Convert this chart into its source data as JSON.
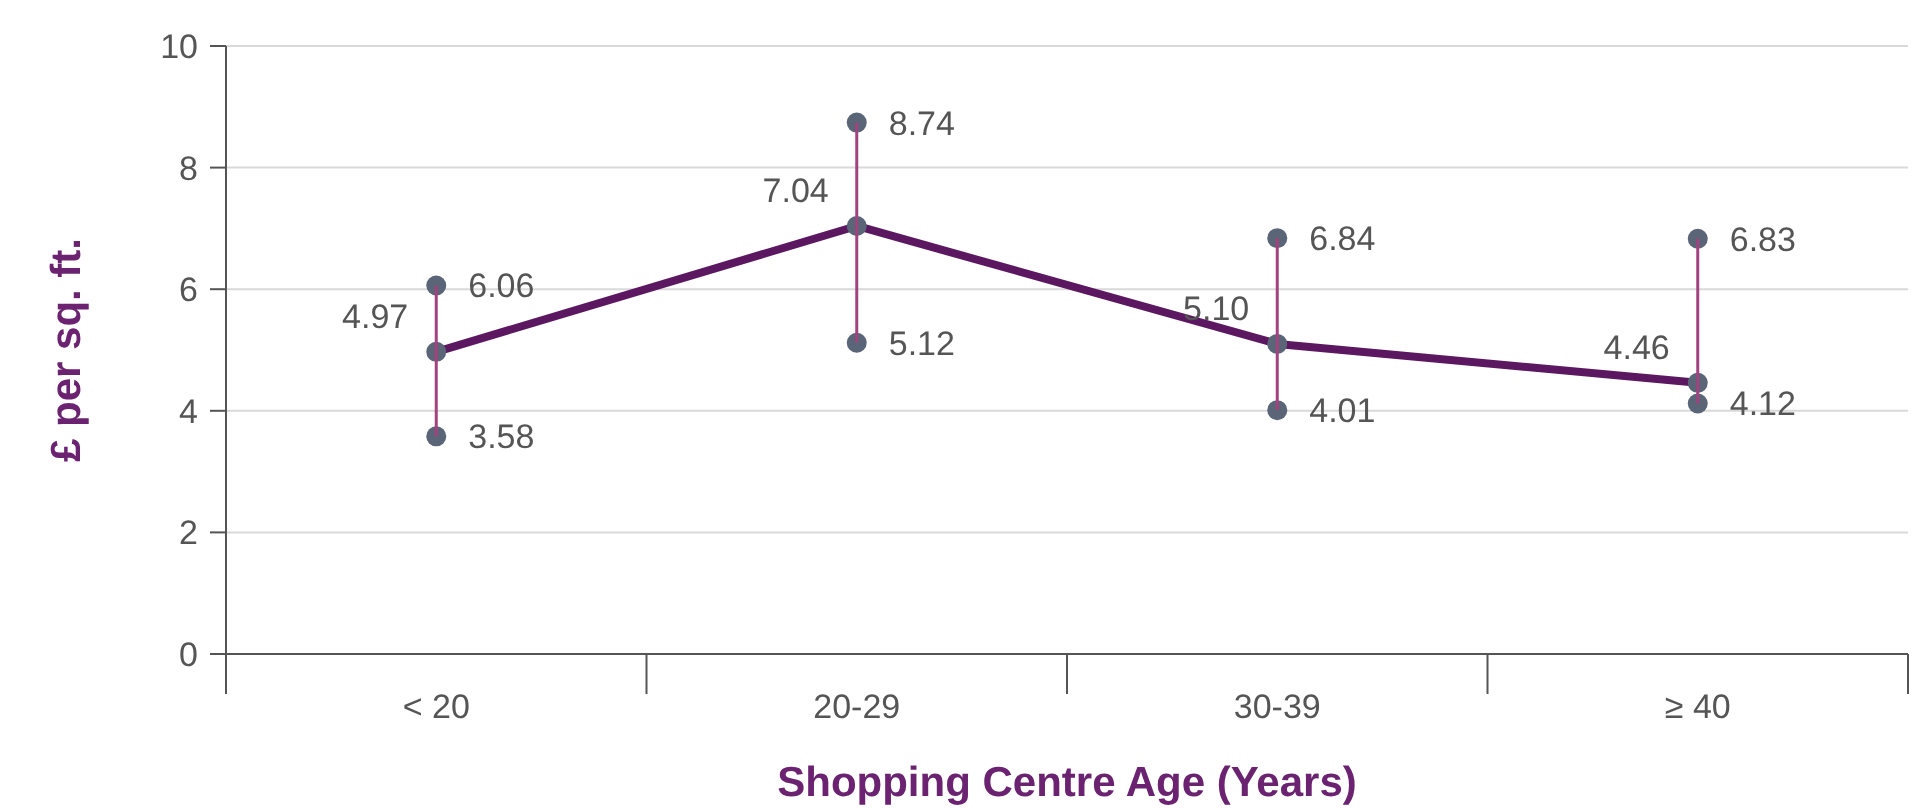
{
  "chart_data": {
    "type": "line",
    "xlabel": "Shopping Centre Age (Years)",
    "ylabel": "£ per sq. ft.",
    "categories": [
      "< 20",
      "20-29",
      "30-39",
      "≥ 40"
    ],
    "series": [
      {
        "color": "#5b1760",
        "values": [
          4.97,
          7.04,
          5.1,
          4.46
        ],
        "errors": [
          [
            3.58,
            6.06
          ],
          [
            5.12,
            8.74
          ],
          [
            4.01,
            6.84
          ],
          [
            4.12,
            6.83
          ]
        ]
      }
    ],
    "value_labels": [
      "4.97",
      "7.04",
      "5.10",
      "4.46"
    ],
    "annotations": [
      {
        "text": "6.06",
        "x": "< 20",
        "y": 6.06
      },
      {
        "text": "3.58",
        "x": "< 20",
        "y": 3.58
      },
      {
        "text": "8.74",
        "x": "20-29",
        "y": 8.74
      },
      {
        "text": "5.12",
        "x": "20-29",
        "y": 5.12
      },
      {
        "text": "6.84",
        "x": "30-39",
        "y": 6.84
      },
      {
        "text": "4.01",
        "x": "30-39",
        "y": 4.01
      },
      {
        "text": "6.83",
        "x": "≥ 40",
        "y": 6.83
      },
      {
        "text": "4.12",
        "x": "≥ 40",
        "y": 4.12
      }
    ],
    "ylim": [
      0,
      10
    ],
    "yticks": [
      0,
      2,
      4,
      6,
      8,
      10
    ],
    "grid": "y",
    "marker": "circle",
    "line_style": "solid"
  }
}
